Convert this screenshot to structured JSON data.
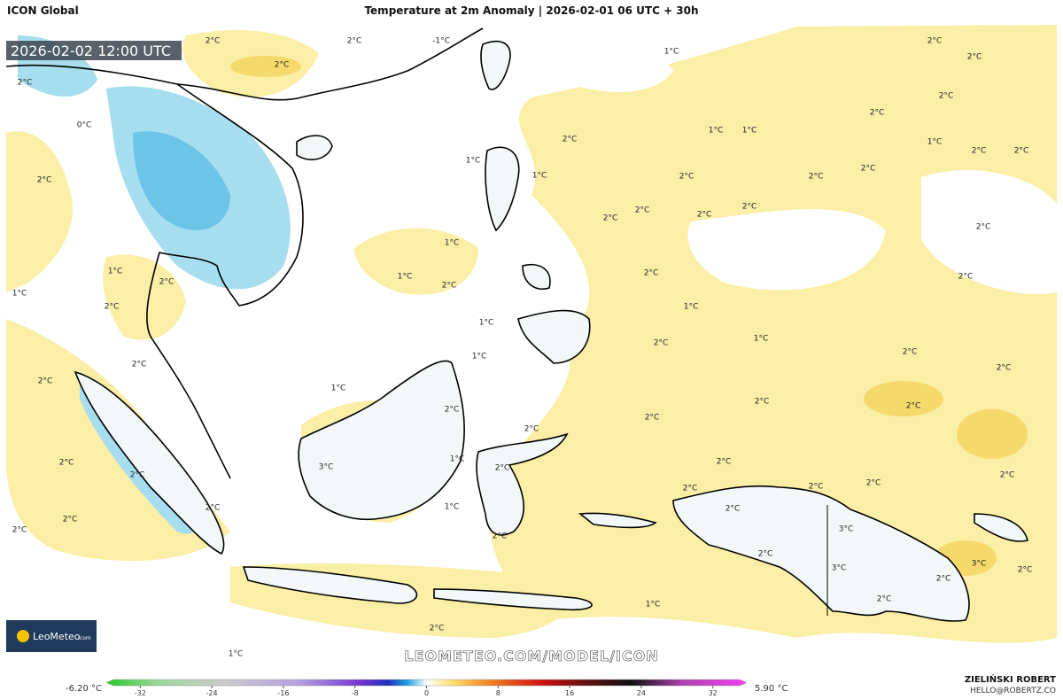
{
  "header": {
    "model": "ICON Global",
    "title": "Temperature at 2m Anomaly | 2026-02-01 06 UTC + 30h",
    "valid_time": "2026-02-02 12:00 UTC"
  },
  "logo": "LeoMeteo",
  "logo_sub": ".com",
  "watermark": "LEOMETEO.COM/MODEL/ICON",
  "map_labels": [
    "2°C",
    "2°C",
    "-1°C",
    "2°C",
    "1°C",
    "2°C",
    "2°C",
    "2°C",
    "2°C",
    "2°C",
    "0°C",
    "2°C",
    "1°C",
    "1°C",
    "1°C",
    "2°C",
    "2°C",
    "1°C",
    "2°C",
    "2°C",
    "1°C",
    "2°C",
    "2°C",
    "2°C",
    "2°C",
    "2°C",
    "2°C",
    "2°C",
    "1°C",
    "1°C",
    "2°C",
    "1°C",
    "2°C",
    "2°C",
    "2°C",
    "1°C",
    "2°C",
    "1°C",
    "1°C",
    "2°C",
    "1°C",
    "2°C",
    "1°C",
    "2°C",
    "2°C",
    "2°C",
    "1°C",
    "2°C",
    "2°C",
    "2°C",
    "2°C",
    "2°C",
    "1°C",
    "3°C",
    "2°C",
    "2°C",
    "2°C",
    "2°C",
    "2°C",
    "2°C",
    "2°C",
    "2°C",
    "2°C",
    "1°C",
    "2°C",
    "2°C",
    "2°C",
    "3°C",
    "2°C",
    "2°C",
    "3°C",
    "3°C",
    "2°C",
    "2°C",
    "1°C",
    "2°C",
    "2°C",
    "1°C"
  ],
  "colorbar": {
    "min_label": "-6.20 °C",
    "max_label": "5.90 °C",
    "range": [
      -35,
      35
    ],
    "ticks": [
      -32,
      -24,
      -16,
      -8,
      0,
      8,
      16,
      24,
      32
    ]
  },
  "author": "ZIELIŃSKI ROBERT",
  "contact": "HELLO@ROBERTZ.CO"
}
